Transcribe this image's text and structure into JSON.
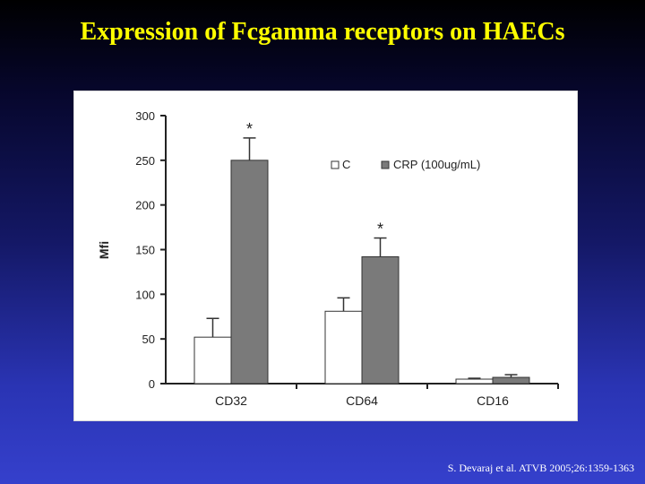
{
  "slide": {
    "title": "Expression of Fcgamma receptors on HAECs",
    "citation": "S. Devaraj et al. ATVB 2005;26:1359-1363"
  },
  "colors": {
    "title": "#ffff00",
    "control_bar": "#ffffff",
    "crp_bar": "#7a7a7a"
  },
  "chart_data": {
    "type": "bar",
    "title": "",
    "xlabel": "",
    "ylabel": "Mfi",
    "ylim": [
      0,
      300
    ],
    "yticks": [
      0,
      50,
      100,
      150,
      200,
      250,
      300
    ],
    "categories": [
      "CD32",
      "CD64",
      "CD16"
    ],
    "series": [
      {
        "name": "C",
        "values": [
          52,
          81,
          5
        ],
        "errors": [
          21,
          15,
          1
        ]
      },
      {
        "name": "CRP (100ug/mL)",
        "values": [
          250,
          142,
          7
        ],
        "errors": [
          25,
          21,
          3
        ]
      }
    ],
    "significance": [
      "*",
      "*",
      ""
    ],
    "legend_position": "top-right",
    "grid": false
  }
}
